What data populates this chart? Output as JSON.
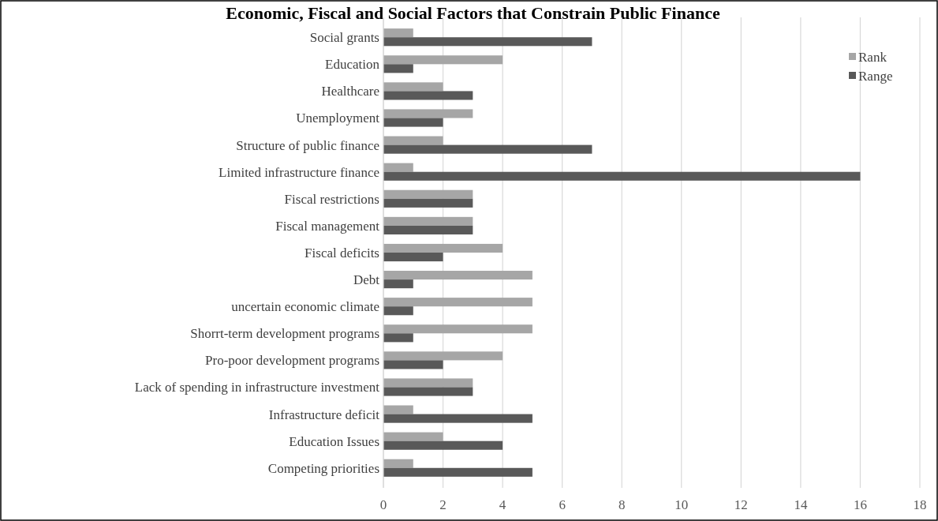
{
  "chart_data": {
    "type": "bar",
    "orientation": "horizontal",
    "title": "Economic, Fiscal and Social Factors that Constrain Public Finance",
    "categories": [
      "Social grants",
      "Education",
      "Healthcare",
      "Unemployment",
      "Structure of public finance",
      "Limited infrastructure finance",
      "Fiscal restrictions",
      "Fiscal management",
      "Fiscal deficits",
      "Debt",
      "uncertain economic climate",
      "Shorrt-term development programs",
      "Pro-poor development programs",
      "Lack of spending in infrastructure investment",
      "Infrastructure deficit",
      "Education Issues",
      "Competing priorities"
    ],
    "series": [
      {
        "name": "Rank",
        "color": "#a6a6a6",
        "values": [
          1,
          4,
          2,
          3,
          2,
          1,
          3,
          3,
          4,
          5,
          5,
          5,
          4,
          3,
          1,
          2,
          1
        ]
      },
      {
        "name": "Range",
        "color": "#595959",
        "values": [
          7,
          1,
          3,
          2,
          7,
          16,
          3,
          3,
          2,
          1,
          1,
          1,
          2,
          3,
          5,
          4,
          5
        ]
      }
    ],
    "xlim": [
      0,
      18
    ],
    "xticks": [
      0,
      2,
      4,
      6,
      8,
      10,
      12,
      14,
      16,
      18
    ],
    "grid": "x",
    "legend": "top right"
  }
}
